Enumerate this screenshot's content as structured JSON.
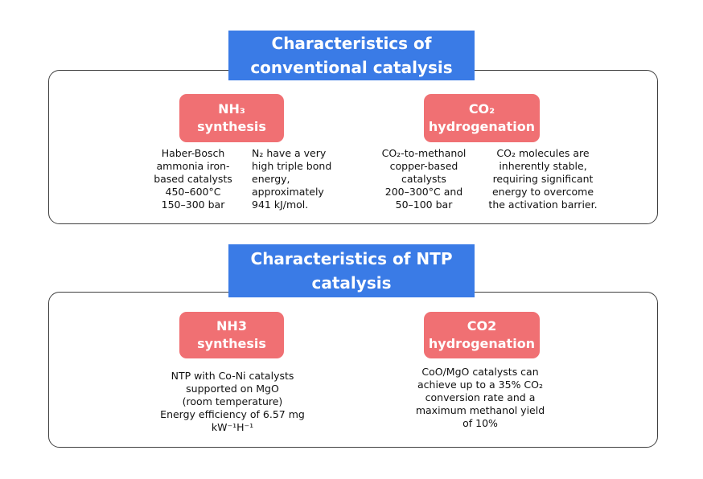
{
  "conventional": {
    "title_line1": "Characteristics of",
    "title_line2": "conventional catalysis",
    "nh3": {
      "pill_line1": "NH₃",
      "pill_line2": "synthesis",
      "conditions": [
        "Haber-Bosch",
        "ammonia  iron-",
        "based catalysts",
        "450–600°C",
        "150–300 bar"
      ],
      "note": [
        "N₂ have a very",
        "high triple bond",
        "energy,",
        "approximately",
        "941 kJ/mol."
      ]
    },
    "co2": {
      "pill_line1": "CO₂",
      "pill_line2": "hydrogenation",
      "conditions": [
        "CO₂-to-methanol",
        "copper-based",
        "catalysts",
        "200–300°C and",
        "50–100 bar"
      ],
      "note": [
        "CO₂ molecules are",
        "inherently stable,",
        "requiring significant",
        "energy to overcome",
        "the activation barrier."
      ]
    }
  },
  "ntp": {
    "title_line1": "Characteristics of NTP",
    "title_line2": "catalysis",
    "nh3": {
      "pill_line1": "NH3",
      "pill_line2": "synthesis",
      "text": [
        "NTP with Co-Ni catalysts",
        "supported on MgO",
        "(room temperature)",
        "Energy efficiency of 6.57 mg",
        "kW⁻¹H⁻¹"
      ]
    },
    "co2": {
      "pill_line1": "CO2",
      "pill_line2": "hydrogenation",
      "text": [
        "CoO/MgO catalysts can",
        "achieve up to a 35% CO₂",
        "conversion rate and a",
        "maximum methanol yield",
        "of 10%"
      ]
    }
  },
  "colors": {
    "banner": "#3a7be6",
    "pill": "#f07073",
    "border": "#404040"
  }
}
